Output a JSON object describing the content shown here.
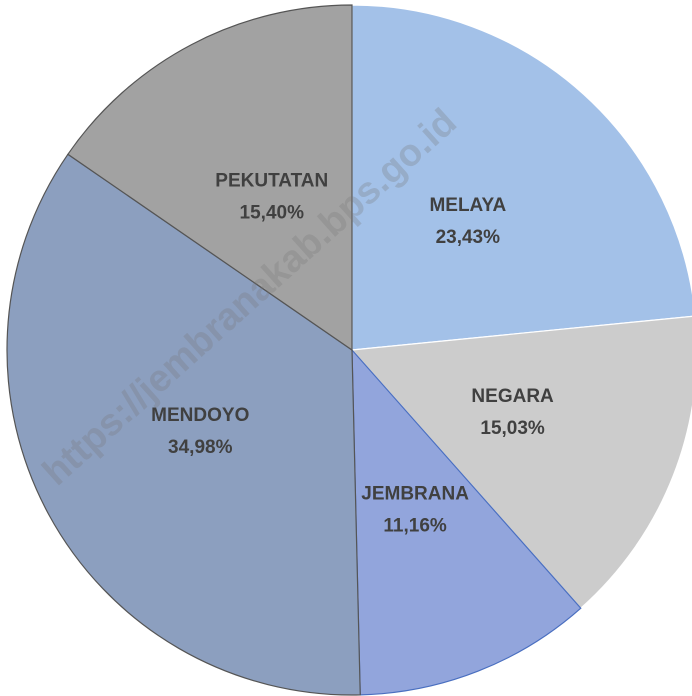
{
  "chart_data": {
    "type": "pie",
    "categories": [
      "MELAYA",
      "NEGARA",
      "JEMBRANA",
      "MENDOYO",
      "PEKUTATAN"
    ],
    "values": [
      23.43,
      15.03,
      11.16,
      34.98,
      15.4
    ],
    "value_labels": [
      "23,43%",
      "15,03%",
      "11,16%",
      "34,98%",
      "15,40%"
    ],
    "colors": [
      "#a3c1e8",
      "#cccccc",
      "#92a5dc",
      "#8c9fbf",
      "#a2a2a2"
    ],
    "watermark": "https://jembranakab.bps.go.id"
  }
}
